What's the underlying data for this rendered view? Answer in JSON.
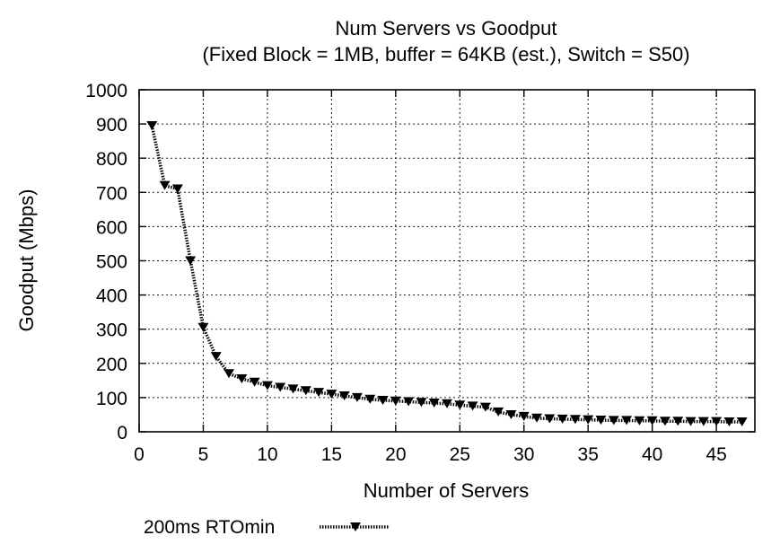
{
  "chart_data": {
    "type": "line",
    "title": "Num Servers vs Goodput",
    "subtitle": "(Fixed Block = 1MB, buffer = 64KB (est.), Switch = S50)",
    "xlabel": "Number of Servers",
    "ylabel": "Goodput (Mbps)",
    "xlim": [
      0,
      48
    ],
    "ylim": [
      0,
      1000
    ],
    "x_ticks": [
      0,
      5,
      10,
      15,
      20,
      25,
      30,
      35,
      40,
      45
    ],
    "y_ticks": [
      0,
      100,
      200,
      300,
      400,
      500,
      600,
      700,
      800,
      900,
      1000
    ],
    "grid": true,
    "legend_position": "bottom-left",
    "series": [
      {
        "name": "200ms RTOmin",
        "x": [
          1,
          2,
          3,
          4,
          5,
          6,
          7,
          8,
          9,
          10,
          11,
          12,
          13,
          14,
          15,
          16,
          17,
          18,
          19,
          20,
          21,
          22,
          23,
          24,
          25,
          26,
          27,
          28,
          29,
          30,
          31,
          32,
          33,
          34,
          35,
          36,
          37,
          38,
          39,
          40,
          41,
          42,
          43,
          44,
          45,
          46,
          47
        ],
        "y": [
          895,
          720,
          710,
          500,
          305,
          220,
          170,
          155,
          145,
          135,
          130,
          125,
          120,
          115,
          110,
          105,
          100,
          95,
          92,
          90,
          88,
          86,
          84,
          82,
          78,
          75,
          72,
          58,
          50,
          45,
          40,
          38,
          37,
          36,
          35,
          34,
          33,
          33,
          32,
          32,
          31,
          31,
          30,
          30,
          30,
          29,
          29
        ]
      }
    ]
  }
}
